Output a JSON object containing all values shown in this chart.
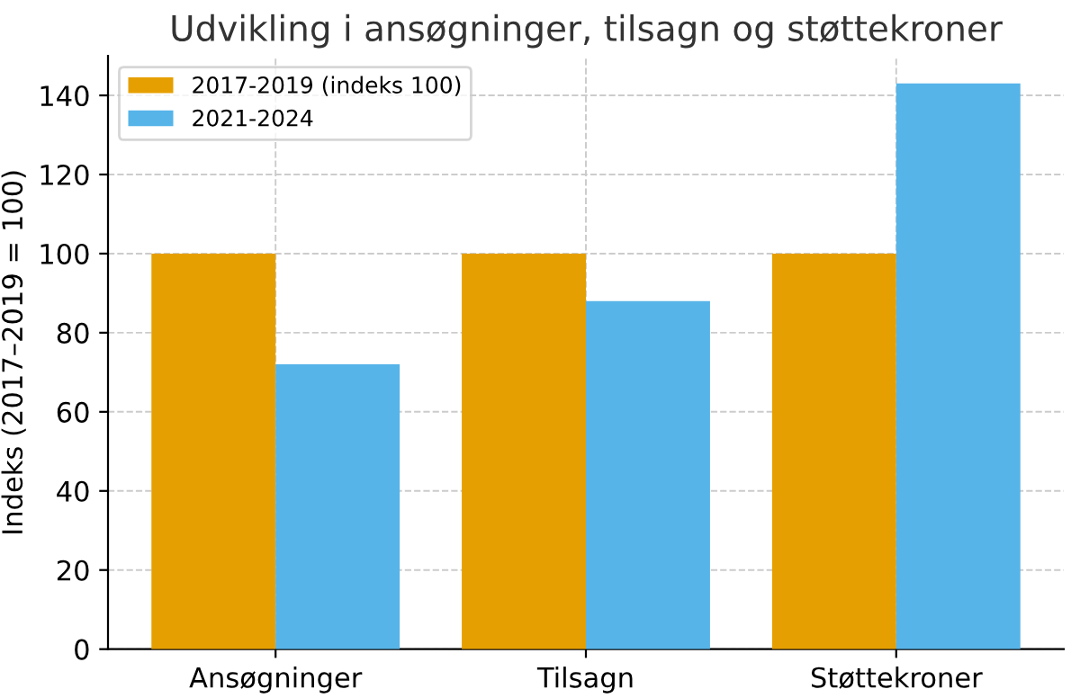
{
  "chart_data": {
    "type": "bar",
    "title": "Udvikling i ansøgninger, tilsagn og støttekroner",
    "ylabel": "Indeks (2017–2019 = 100)",
    "categories": [
      "Ansøgninger",
      "Tilsagn",
      "Støttekroner"
    ],
    "series": [
      {
        "name": "2017-2019 (indeks 100)",
        "color": "#e69f00",
        "values": [
          100,
          100,
          100
        ]
      },
      {
        "name": "2021-2024",
        "color": "#56b4e9",
        "values": [
          72,
          88,
          143
        ]
      }
    ],
    "ylim": [
      0,
      150
    ],
    "yticks": [
      0,
      20,
      40,
      60,
      80,
      100,
      120,
      140
    ],
    "grid": true,
    "legend": "top left"
  }
}
